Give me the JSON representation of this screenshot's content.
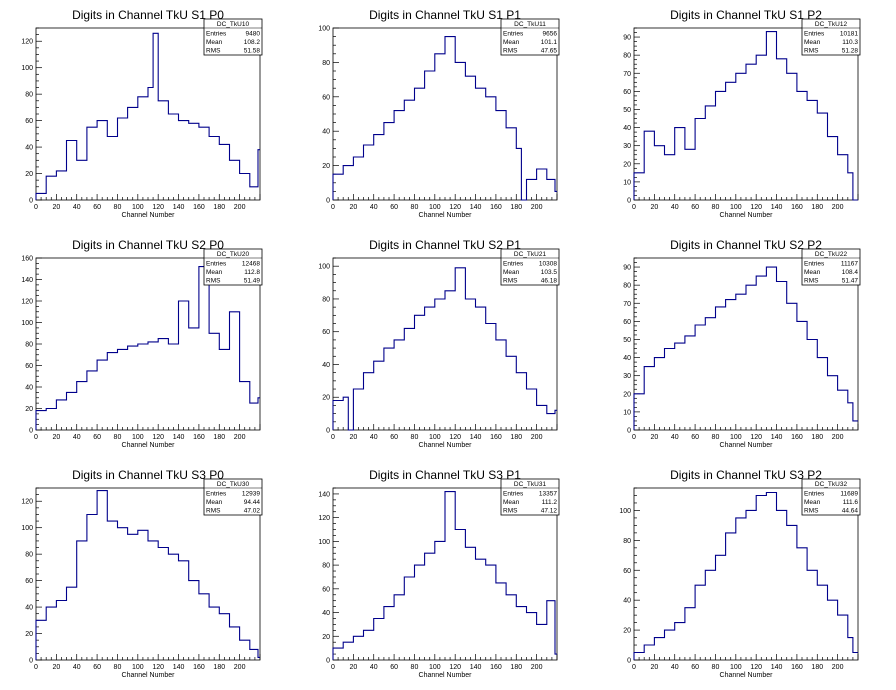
{
  "style": {
    "line_color": "#00008b",
    "axis_color": "#000000",
    "background": "#ffffff"
  },
  "chart_data": [
    {
      "type": "line",
      "title": "Digits in Channel TkU S1 P0",
      "xlabel": "Channel Number",
      "ylabel": "",
      "xlim": [
        0,
        220
      ],
      "ylim": [
        0,
        130
      ],
      "xticks": [
        0,
        20,
        40,
        60,
        80,
        100,
        120,
        140,
        160,
        180,
        200
      ],
      "yticks": [
        0,
        20,
        40,
        60,
        80,
        100,
        120
      ],
      "stats": {
        "name": "DC_TkU10",
        "entries": "9480",
        "mean": "108.2",
        "rms": "51.58"
      },
      "series": [
        {
          "x": [
            0,
            10,
            20,
            30,
            40,
            50,
            60,
            70,
            80,
            90,
            100,
            110,
            115,
            120,
            130,
            140,
            150,
            160,
            170,
            180,
            190,
            200,
            210,
            218
          ],
          "y": [
            5,
            18,
            22,
            45,
            30,
            55,
            60,
            48,
            62,
            70,
            78,
            85,
            126,
            75,
            65,
            60,
            58,
            55,
            48,
            42,
            30,
            20,
            10,
            38
          ]
        }
      ]
    },
    {
      "type": "line",
      "title": "Digits in Channel TkU S1 P1",
      "xlabel": "Channel Number",
      "ylabel": "",
      "xlim": [
        0,
        220
      ],
      "ylim": [
        0,
        100
      ],
      "xticks": [
        0,
        20,
        40,
        60,
        80,
        100,
        120,
        140,
        160,
        180,
        200
      ],
      "yticks": [
        0,
        20,
        40,
        60,
        80,
        100
      ],
      "stats": {
        "name": "DC_TkU11",
        "entries": "9656",
        "mean": "101.1",
        "rms": "47.65"
      },
      "series": [
        {
          "x": [
            0,
            10,
            20,
            30,
            40,
            50,
            60,
            70,
            80,
            90,
            100,
            110,
            120,
            130,
            140,
            150,
            160,
            170,
            180,
            185,
            190,
            200,
            210,
            218
          ],
          "y": [
            15,
            20,
            25,
            32,
            38,
            45,
            52,
            58,
            65,
            75,
            85,
            95,
            80,
            72,
            65,
            60,
            52,
            42,
            30,
            0,
            12,
            18,
            12,
            5
          ]
        }
      ]
    },
    {
      "type": "line",
      "title": "Digits in Channel TkU S1 P2",
      "xlabel": "Channel Number",
      "ylabel": "",
      "xlim": [
        0,
        220
      ],
      "ylim": [
        0,
        95
      ],
      "xticks": [
        0,
        20,
        40,
        60,
        80,
        100,
        120,
        140,
        160,
        180,
        200
      ],
      "yticks": [
        0,
        10,
        20,
        30,
        40,
        50,
        60,
        70,
        80,
        90
      ],
      "stats": {
        "name": "DC_TkU12",
        "entries": "10181",
        "mean": "110.3",
        "rms": "51.28"
      },
      "series": [
        {
          "x": [
            0,
            10,
            20,
            30,
            40,
            50,
            60,
            70,
            80,
            90,
            100,
            110,
            120,
            130,
            140,
            150,
            160,
            170,
            180,
            190,
            200,
            210,
            215
          ],
          "y": [
            15,
            38,
            30,
            25,
            40,
            28,
            45,
            52,
            60,
            65,
            70,
            75,
            80,
            93,
            78,
            70,
            60,
            55,
            48,
            35,
            25,
            15,
            0
          ]
        }
      ]
    },
    {
      "type": "line",
      "title": "Digits in Channel TkU S2 P0",
      "xlabel": "Channel Number",
      "ylabel": "",
      "xlim": [
        0,
        220
      ],
      "ylim": [
        0,
        160
      ],
      "xticks": [
        0,
        20,
        40,
        60,
        80,
        100,
        120,
        140,
        160,
        180,
        200
      ],
      "yticks": [
        0,
        20,
        40,
        60,
        80,
        100,
        120,
        140,
        160
      ],
      "stats": {
        "name": "DC_TkU20",
        "entries": "12468",
        "mean": "112.8",
        "rms": "51.49"
      },
      "series": [
        {
          "x": [
            0,
            10,
            20,
            30,
            40,
            50,
            60,
            70,
            80,
            90,
            100,
            110,
            120,
            130,
            140,
            150,
            160,
            170,
            180,
            190,
            200,
            210,
            218
          ],
          "y": [
            18,
            20,
            28,
            35,
            45,
            55,
            65,
            72,
            75,
            78,
            80,
            82,
            85,
            80,
            120,
            95,
            152,
            90,
            75,
            110,
            45,
            25,
            30
          ]
        }
      ]
    },
    {
      "type": "line",
      "title": "Digits in Channel TkU S2 P1",
      "xlabel": "Channel Number",
      "ylabel": "",
      "xlim": [
        0,
        220
      ],
      "ylim": [
        0,
        105
      ],
      "xticks": [
        0,
        20,
        40,
        60,
        80,
        100,
        120,
        140,
        160,
        180,
        200
      ],
      "yticks": [
        0,
        20,
        40,
        60,
        80,
        100
      ],
      "stats": {
        "name": "DC_TkU21",
        "entries": "10308",
        "mean": "103.5",
        "rms": "46.18"
      },
      "series": [
        {
          "x": [
            0,
            10,
            15,
            20,
            30,
            40,
            50,
            60,
            70,
            80,
            90,
            100,
            110,
            120,
            130,
            140,
            150,
            160,
            170,
            180,
            190,
            200,
            210,
            218
          ],
          "y": [
            18,
            20,
            0,
            25,
            35,
            42,
            50,
            55,
            62,
            70,
            75,
            80,
            85,
            99,
            80,
            75,
            65,
            55,
            45,
            35,
            25,
            15,
            10,
            12
          ]
        }
      ]
    },
    {
      "type": "line",
      "title": "Digits in Channel TkU S2 P2",
      "xlabel": "Channel Number",
      "ylabel": "",
      "xlim": [
        0,
        220
      ],
      "ylim": [
        0,
        95
      ],
      "xticks": [
        0,
        20,
        40,
        60,
        80,
        100,
        120,
        140,
        160,
        180,
        200
      ],
      "yticks": [
        0,
        10,
        20,
        30,
        40,
        50,
        60,
        70,
        80,
        90
      ],
      "stats": {
        "name": "DC_TkU22",
        "entries": "11167",
        "mean": "108.4",
        "rms": "51.47"
      },
      "series": [
        {
          "x": [
            0,
            10,
            20,
            30,
            40,
            50,
            60,
            70,
            80,
            90,
            100,
            110,
            120,
            130,
            140,
            150,
            160,
            170,
            180,
            190,
            200,
            210,
            215
          ],
          "y": [
            20,
            35,
            40,
            45,
            48,
            52,
            58,
            62,
            68,
            72,
            75,
            80,
            85,
            90,
            82,
            70,
            60,
            50,
            40,
            30,
            22,
            15,
            5
          ]
        }
      ]
    },
    {
      "type": "line",
      "title": "Digits in Channel TkU S3 P0",
      "xlabel": "Channel Number",
      "ylabel": "",
      "xlim": [
        0,
        220
      ],
      "ylim": [
        0,
        130
      ],
      "xticks": [
        0,
        20,
        40,
        60,
        80,
        100,
        120,
        140,
        160,
        180,
        200
      ],
      "yticks": [
        0,
        20,
        40,
        60,
        80,
        100,
        120
      ],
      "stats": {
        "name": "DC_TkU30",
        "entries": "12939",
        "mean": "94.44",
        "rms": "47.02"
      },
      "series": [
        {
          "x": [
            0,
            10,
            20,
            30,
            40,
            50,
            60,
            70,
            80,
            90,
            100,
            110,
            120,
            130,
            140,
            150,
            160,
            170,
            180,
            190,
            200,
            210,
            218
          ],
          "y": [
            30,
            40,
            45,
            55,
            90,
            110,
            128,
            105,
            100,
            95,
            98,
            90,
            85,
            80,
            75,
            60,
            50,
            40,
            35,
            25,
            15,
            8,
            2
          ]
        }
      ]
    },
    {
      "type": "line",
      "title": "Digits in Channel TkU S3 P1",
      "xlabel": "Channel Number",
      "ylabel": "",
      "xlim": [
        0,
        220
      ],
      "ylim": [
        0,
        145
      ],
      "xticks": [
        0,
        20,
        40,
        60,
        80,
        100,
        120,
        140,
        160,
        180,
        200
      ],
      "yticks": [
        0,
        20,
        40,
        60,
        80,
        100,
        120,
        140
      ],
      "stats": {
        "name": "DC_TkU31",
        "entries": "13357",
        "mean": "111.2",
        "rms": "47.12"
      },
      "series": [
        {
          "x": [
            0,
            10,
            20,
            30,
            40,
            50,
            60,
            70,
            80,
            90,
            100,
            110,
            120,
            130,
            140,
            150,
            160,
            170,
            180,
            190,
            200,
            210,
            218
          ],
          "y": [
            10,
            15,
            20,
            25,
            35,
            45,
            55,
            70,
            80,
            90,
            100,
            142,
            110,
            95,
            85,
            80,
            65,
            55,
            45,
            40,
            30,
            50,
            5
          ]
        }
      ]
    },
    {
      "type": "line",
      "title": "Digits in Channel TkU S3 P2",
      "xlabel": "Channel Number",
      "ylabel": "",
      "xlim": [
        0,
        220
      ],
      "ylim": [
        0,
        115
      ],
      "xticks": [
        0,
        20,
        40,
        60,
        80,
        100,
        120,
        140,
        160,
        180,
        200
      ],
      "yticks": [
        0,
        20,
        40,
        60,
        80,
        100
      ],
      "stats": {
        "name": "DC_TkU32",
        "entries": "11689",
        "mean": "111.6",
        "rms": "44.64"
      },
      "series": [
        {
          "x": [
            0,
            10,
            20,
            30,
            40,
            50,
            60,
            70,
            80,
            90,
            100,
            110,
            120,
            130,
            140,
            150,
            160,
            170,
            180,
            190,
            200,
            210,
            215
          ],
          "y": [
            5,
            10,
            15,
            20,
            25,
            35,
            50,
            60,
            70,
            85,
            95,
            100,
            110,
            112,
            100,
            90,
            75,
            60,
            50,
            40,
            30,
            15,
            5
          ]
        }
      ]
    }
  ]
}
